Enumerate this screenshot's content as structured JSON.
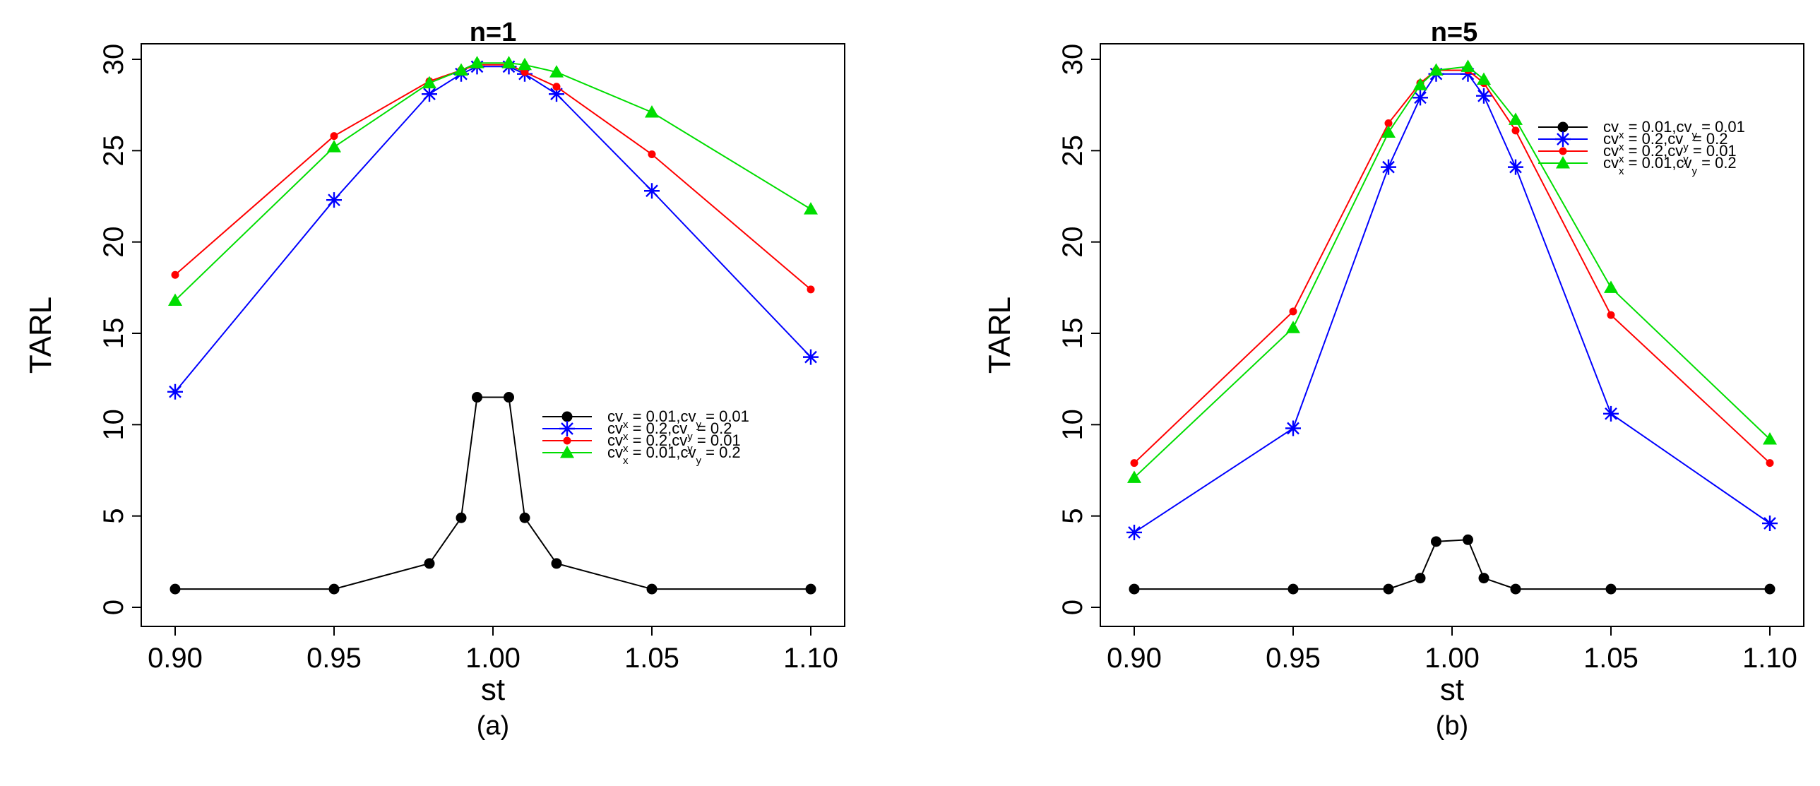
{
  "chart_data": [
    {
      "type": "line",
      "title": "n=1",
      "caption": "(a)",
      "xlabel": "st",
      "ylabel": "TARL",
      "xlim": [
        0.9,
        1.1
      ],
      "ylim": [
        0,
        30
      ],
      "xticks": [
        "0.90",
        "0.95",
        "1.00",
        "1.05",
        "1.10"
      ],
      "yticks": [
        "0",
        "5",
        "10",
        "15",
        "20",
        "25",
        "30"
      ],
      "legend_position": "center-right",
      "x": [
        0.9,
        0.95,
        0.98,
        0.99,
        0.995,
        1.005,
        1.01,
        1.02,
        1.05,
        1.1
      ],
      "series": [
        {
          "name": "cvx = 0.01,cvy = 0.01",
          "color": "#000000",
          "marker": "circle",
          "values": [
            1.0,
            1.0,
            2.4,
            4.9,
            11.5,
            11.5,
            4.9,
            2.4,
            1.0,
            1.0
          ]
        },
        {
          "name": "cvx = 0.2,cvy = 0.2",
          "color": "#0000ff",
          "marker": "asterisk",
          "values": [
            11.8,
            22.3,
            28.1,
            29.2,
            29.6,
            29.6,
            29.2,
            28.1,
            22.8,
            13.7
          ]
        },
        {
          "name": "cvx = 0.2,cvy = 0.01",
          "color": "#ff0000",
          "marker": "small-dot",
          "values": [
            18.2,
            25.8,
            28.8,
            29.4,
            29.7,
            29.7,
            29.3,
            28.5,
            24.8,
            17.4
          ]
        },
        {
          "name": "cvx = 0.01,cvy = 0.2",
          "color": "#00dd00",
          "marker": "triangle",
          "values": [
            16.8,
            25.2,
            28.7,
            29.4,
            29.8,
            29.8,
            29.7,
            29.3,
            27.1,
            21.8
          ]
        }
      ]
    },
    {
      "type": "line",
      "title": "n=5",
      "caption": "(b)",
      "xlabel": "st",
      "ylabel": "TARL",
      "xlim": [
        0.9,
        1.1
      ],
      "ylim": [
        0,
        30
      ],
      "xticks": [
        "0.90",
        "0.95",
        "1.00",
        "1.05",
        "1.10"
      ],
      "yticks": [
        "0",
        "5",
        "10",
        "15",
        "20",
        "25",
        "30"
      ],
      "legend_position": "top-right",
      "x": [
        0.9,
        0.95,
        0.98,
        0.99,
        0.995,
        1.005,
        1.01,
        1.02,
        1.05,
        1.1
      ],
      "series": [
        {
          "name": "cvx = 0.01,cvy = 0.01",
          "color": "#000000",
          "marker": "circle",
          "values": [
            1.0,
            1.0,
            1.0,
            1.6,
            3.6,
            3.7,
            1.6,
            1.0,
            1.0,
            1.0
          ]
        },
        {
          "name": "cvx = 0.2,cvy = 0.2",
          "color": "#0000ff",
          "marker": "asterisk",
          "values": [
            4.1,
            9.8,
            24.1,
            27.9,
            29.2,
            29.2,
            28.0,
            24.1,
            10.6,
            4.6
          ]
        },
        {
          "name": "cvx = 0.2,cvy = 0.01",
          "color": "#ff0000",
          "marker": "small-dot",
          "values": [
            7.9,
            16.2,
            26.5,
            28.7,
            29.4,
            29.4,
            28.7,
            26.1,
            16.0,
            7.9
          ]
        },
        {
          "name": "cvx = 0.01,cvy = 0.2",
          "color": "#00dd00",
          "marker": "triangle",
          "values": [
            7.1,
            15.3,
            26.0,
            28.6,
            29.4,
            29.6,
            28.9,
            26.7,
            17.5,
            9.2
          ]
        }
      ]
    }
  ]
}
